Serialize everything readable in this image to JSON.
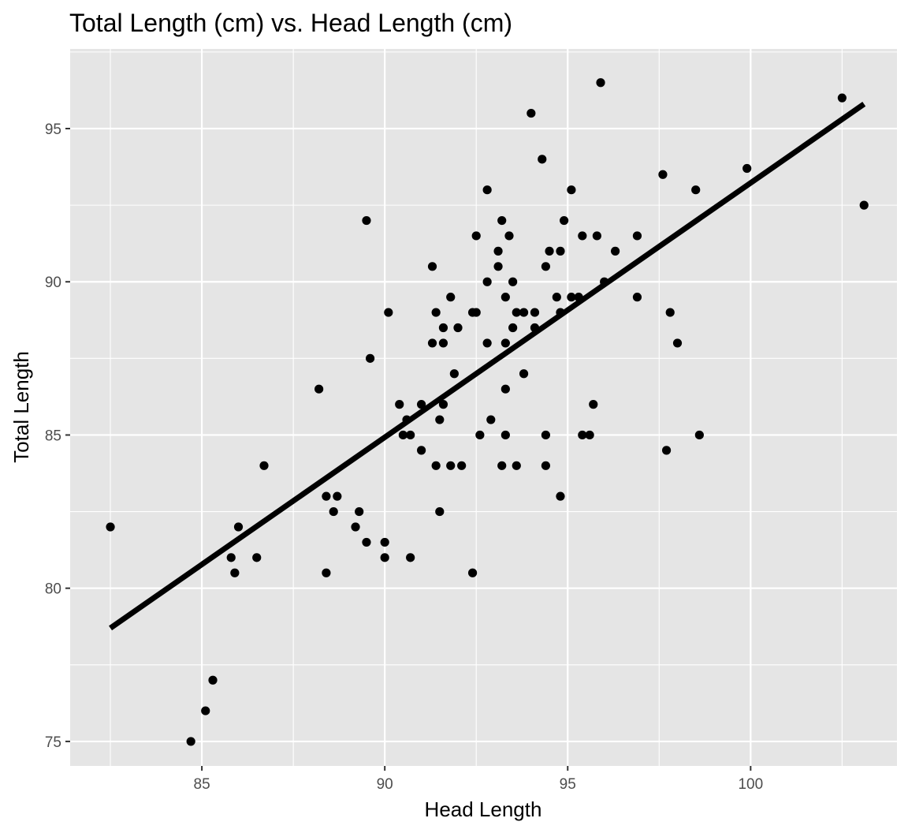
{
  "chart_data": {
    "type": "scatter",
    "title": "Total Length (cm) vs. Head Length (cm)",
    "xlabel": "Head Length",
    "ylabel": "Total Length",
    "xlim": [
      81.4,
      104.0
    ],
    "ylim": [
      74.2,
      97.6
    ],
    "x_ticks": [
      85,
      90,
      95,
      100
    ],
    "y_ticks": [
      75,
      80,
      85,
      90,
      95
    ],
    "x_tick_labels": [
      "85",
      "90",
      "95",
      "100"
    ],
    "y_tick_labels": [
      "75",
      "80",
      "85",
      "90",
      "95"
    ],
    "grid": true,
    "legend": "none",
    "colors": {
      "panel_background": "#e5e5e5",
      "grid": "#ffffff",
      "points": "#000000",
      "fit_line": "#000000"
    },
    "fit_line": {
      "type": "linear",
      "x": [
        82.5,
        103.1
      ],
      "y": [
        78.7,
        95.8
      ]
    },
    "points": [
      [
        82.5,
        82.0
      ],
      [
        84.7,
        75.0
      ],
      [
        85.1,
        76.0
      ],
      [
        85.3,
        77.0
      ],
      [
        85.8,
        81.0
      ],
      [
        85.9,
        80.5
      ],
      [
        86.0,
        82.0
      ],
      [
        86.5,
        81.0
      ],
      [
        86.7,
        84.0
      ],
      [
        88.2,
        86.5
      ],
      [
        88.4,
        83.0
      ],
      [
        88.4,
        80.5
      ],
      [
        88.6,
        82.5
      ],
      [
        88.7,
        83.0
      ],
      [
        89.2,
        82.0
      ],
      [
        89.3,
        82.5
      ],
      [
        89.5,
        92.0
      ],
      [
        89.5,
        81.5
      ],
      [
        89.6,
        87.5
      ],
      [
        90.0,
        81.5
      ],
      [
        90.0,
        81.0
      ],
      [
        90.1,
        89.0
      ],
      [
        90.4,
        86.0
      ],
      [
        90.5,
        85.0
      ],
      [
        90.6,
        85.5
      ],
      [
        90.7,
        85.0
      ],
      [
        90.7,
        81.0
      ],
      [
        91.0,
        86.0
      ],
      [
        91.0,
        84.5
      ],
      [
        91.3,
        90.5
      ],
      [
        91.3,
        88.0
      ],
      [
        91.4,
        89.0
      ],
      [
        91.4,
        84.0
      ],
      [
        91.5,
        85.5
      ],
      [
        91.5,
        82.5
      ],
      [
        91.6,
        88.5
      ],
      [
        91.6,
        88.0
      ],
      [
        91.6,
        86.0
      ],
      [
        91.8,
        89.5
      ],
      [
        91.8,
        84.0
      ],
      [
        91.9,
        87.0
      ],
      [
        92.0,
        88.5
      ],
      [
        92.1,
        84.0
      ],
      [
        92.4,
        89.0
      ],
      [
        92.4,
        80.5
      ],
      [
        92.5,
        91.5
      ],
      [
        92.5,
        89.0
      ],
      [
        92.6,
        85.0
      ],
      [
        92.8,
        93.0
      ],
      [
        92.8,
        90.0
      ],
      [
        92.8,
        88.0
      ],
      [
        92.9,
        85.5
      ],
      [
        93.1,
        91.0
      ],
      [
        93.1,
        90.5
      ],
      [
        93.2,
        92.0
      ],
      [
        93.2,
        84.0
      ],
      [
        93.3,
        89.5
      ],
      [
        93.3,
        88.0
      ],
      [
        93.3,
        86.5
      ],
      [
        93.3,
        85.0
      ],
      [
        93.4,
        91.5
      ],
      [
        93.5,
        90.0
      ],
      [
        93.5,
        88.5
      ],
      [
        93.6,
        89.0
      ],
      [
        93.6,
        84.0
      ],
      [
        93.8,
        89.0
      ],
      [
        93.8,
        87.0
      ],
      [
        94.0,
        95.5
      ],
      [
        94.1,
        89.0
      ],
      [
        94.1,
        88.5
      ],
      [
        94.3,
        94.0
      ],
      [
        94.4,
        90.5
      ],
      [
        94.4,
        85.0
      ],
      [
        94.4,
        84.0
      ],
      [
        94.5,
        91.0
      ],
      [
        94.7,
        89.5
      ],
      [
        94.8,
        91.0
      ],
      [
        94.8,
        89.0
      ],
      [
        94.8,
        83.0
      ],
      [
        94.9,
        92.0
      ],
      [
        95.1,
        93.0
      ],
      [
        95.1,
        89.5
      ],
      [
        95.3,
        89.5
      ],
      [
        95.4,
        91.5
      ],
      [
        95.4,
        85.0
      ],
      [
        95.6,
        85.0
      ],
      [
        95.7,
        86.0
      ],
      [
        95.8,
        91.5
      ],
      [
        95.9,
        96.5
      ],
      [
        96.0,
        90.0
      ],
      [
        96.3,
        91.0
      ],
      [
        96.9,
        91.5
      ],
      [
        96.9,
        89.5
      ],
      [
        97.6,
        93.5
      ],
      [
        97.7,
        84.5
      ],
      [
        97.8,
        89.0
      ],
      [
        98.0,
        88.0
      ],
      [
        98.5,
        93.0
      ],
      [
        98.6,
        85.0
      ],
      [
        99.9,
        93.7
      ],
      [
        102.5,
        96.0
      ],
      [
        103.1,
        92.5
      ]
    ]
  }
}
